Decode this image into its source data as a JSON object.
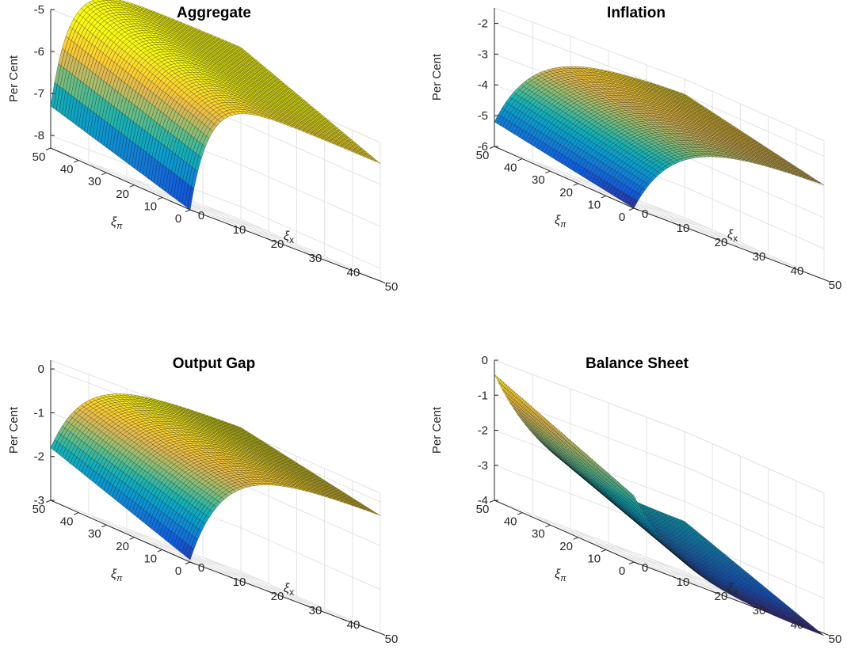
{
  "figure": {
    "ylabel": "Per Cent",
    "xlabel": "ξx",
    "zlabel_sub": "π",
    "colors": {
      "axis": "#262626",
      "grid": "#e3e3e3",
      "edge": "#111111"
    }
  },
  "chart_data": [
    {
      "type": "surface",
      "title": "Aggregate",
      "xlabel": "ξx",
      "ylabel": "ξπ",
      "zlabel": "Per Cent",
      "x_ticks": [
        "0",
        "10",
        "20",
        "30",
        "40",
        "50"
      ],
      "y_ticks": [
        "0",
        "10",
        "20",
        "30",
        "40",
        "50"
      ],
      "z_ticks": [
        "-8",
        "-7",
        "-6",
        "-5"
      ],
      "xlim": [
        0,
        50
      ],
      "ylim": [
        0,
        50
      ],
      "zlim": [
        -8.3,
        -5
      ],
      "corners": {
        "x0_y0": -8.3,
        "x0_y50": -7.3,
        "x50_y0": -6.6,
        "x50_y50": -5.3
      },
      "description_of_shape": "rises steeply in ξx then plateaus, slight rise with ξπ"
    },
    {
      "type": "surface",
      "title": "Inflation",
      "xlabel": "ξx",
      "ylabel": "ξπ",
      "zlabel": "Per Cent",
      "x_ticks": [
        "0",
        "10",
        "20",
        "30",
        "40",
        "50"
      ],
      "y_ticks": [
        "0",
        "10",
        "20",
        "30",
        "40",
        "50"
      ],
      "z_ticks": [
        "-6",
        "-5",
        "-4",
        "-3",
        "-2"
      ],
      "xlim": [
        0,
        50
      ],
      "ylim": [
        0,
        50
      ],
      "zlim": [
        -6,
        -1.5
      ],
      "corners": {
        "x0_y0": -6.0,
        "x0_y50": -5.2,
        "x50_y0": -3.0,
        "x50_y50": -1.6
      }
    },
    {
      "type": "surface",
      "title": "Output Gap",
      "xlabel": "ξx",
      "ylabel": "ξπ",
      "zlabel": "Per Cent",
      "x_ticks": [
        "0",
        "10",
        "20",
        "30",
        "40",
        "50"
      ],
      "y_ticks": [
        "0",
        "10",
        "20",
        "30",
        "40",
        "50"
      ],
      "z_ticks": [
        "-3",
        "-2",
        "-1",
        "0"
      ],
      "xlim": [
        0,
        50
      ],
      "ylim": [
        0,
        50
      ],
      "zlim": [
        -3,
        0.2
      ],
      "corners": {
        "x0_y0": -2.95,
        "x0_y50": -1.8,
        "x50_y0": -0.4,
        "x50_y50": 0.2
      }
    },
    {
      "type": "surface",
      "title": "Balance Sheet",
      "xlabel": "ξx",
      "ylabel": "ξπ",
      "zlabel": "Per Cent",
      "x_ticks": [
        "0",
        "10",
        "20",
        "30",
        "40",
        "50"
      ],
      "y_ticks": [
        "0",
        "10",
        "20",
        "30",
        "40",
        "50"
      ],
      "z_ticks": [
        "-4",
        "-3",
        "-2",
        "-1",
        "0"
      ],
      "xlim": [
        0,
        50
      ],
      "ylim": [
        0,
        50
      ],
      "zlim": [
        -4,
        0
      ],
      "corners": {
        "x0_y0": -2.1,
        "x0_y50": -0.4,
        "x50_y0": -4.0,
        "x50_y50": -3.2
      }
    }
  ]
}
